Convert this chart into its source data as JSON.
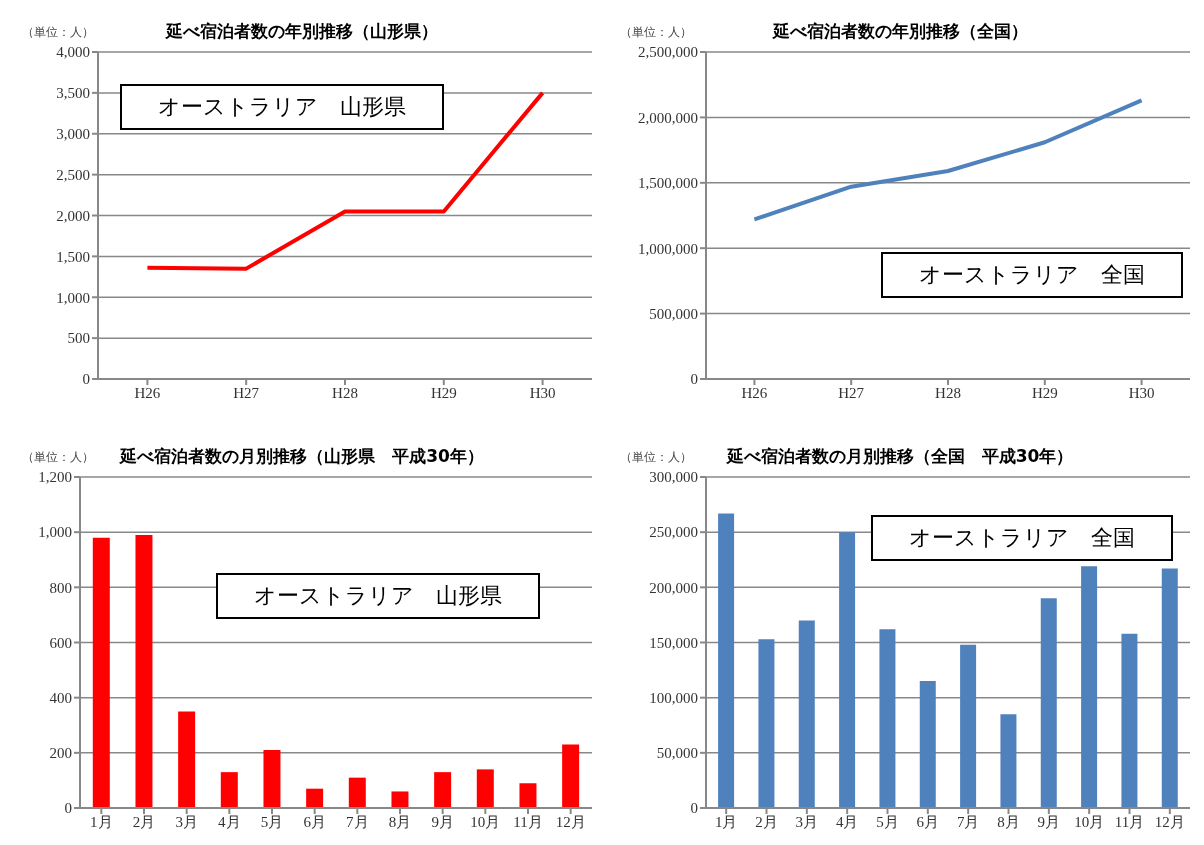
{
  "chart_data": [
    {
      "type": "line",
      "title": "延べ宿泊者数の年別推移（山形県）",
      "ylabel": "（単位：人）",
      "annotations": [
        "オーストラリア　山形県"
      ],
      "categories": [
        "H26",
        "H27",
        "H28",
        "H29",
        "H30"
      ],
      "series": [
        {
          "color": "#ff0000",
          "values": [
            1360,
            1350,
            2050,
            2050,
            3500
          ]
        }
      ],
      "ylim": [
        0,
        4000
      ],
      "yticks": [
        0,
        500,
        {
          "value": 1000,
          "label": "1,000"
        },
        {
          "value": 1500,
          "label": "1,500"
        },
        {
          "value": 2000,
          "label": "2,000"
        },
        {
          "value": 2500,
          "label": "2,500"
        },
        {
          "value": 3000,
          "label": "3,000"
        },
        {
          "value": 3500,
          "label": "3,500"
        },
        {
          "value": 4000,
          "label": "4,000"
        }
      ],
      "grid": "y",
      "legend": false,
      "marker": "none"
    },
    {
      "type": "line",
      "title": "延べ宿泊者数の年別推移（全国）",
      "ylabel": "（単位：人）",
      "annotations": [
        "オーストラリア　全国"
      ],
      "categories": [
        "H26",
        "H27",
        "H28",
        "H29",
        "H30"
      ],
      "series": [
        {
          "color": "#4f81bd",
          "values": [
            1220000,
            1470000,
            1590000,
            1810000,
            2130000
          ]
        }
      ],
      "ylim": [
        0,
        2500000
      ],
      "yticks": [
        0,
        {
          "value": 500000,
          "label": "500,000"
        },
        {
          "value": 1000000,
          "label": "1,000,000"
        },
        {
          "value": 1500000,
          "label": "1,500,000"
        },
        {
          "value": 2000000,
          "label": "2,000,000"
        },
        {
          "value": 2500000,
          "label": "2,500,000"
        }
      ],
      "grid": "y",
      "legend": false,
      "marker": "none"
    },
    {
      "type": "bar",
      "title": "延べ宿泊者数の月別推移（山形県　平成30年）",
      "ylabel": "（単位：人）",
      "annotations": [
        "オーストラリア　山形県"
      ],
      "categories": [
        "1月",
        "2月",
        "3月",
        "4月",
        "5月",
        "6月",
        "7月",
        "8月",
        "9月",
        "10月",
        "11月",
        "12月"
      ],
      "series": [
        {
          "color": "#ff0000",
          "values": [
            980,
            990,
            350,
            130,
            210,
            70,
            110,
            60,
            130,
            140,
            90,
            230
          ]
        }
      ],
      "ylim": [
        0,
        1200
      ],
      "yticks": [
        0,
        200,
        400,
        600,
        800,
        {
          "value": 1000,
          "label": "1,000"
        },
        {
          "value": 1200,
          "label": "1,200"
        }
      ],
      "grid": "y",
      "legend": false
    },
    {
      "type": "bar",
      "title": "延べ宿泊者数の月別推移（全国　平成30年）",
      "ylabel": "（単位：人）",
      "annotations": [
        "オーストラリア　全国"
      ],
      "categories": [
        "1月",
        "2月",
        "3月",
        "4月",
        "5月",
        "6月",
        "7月",
        "8月",
        "9月",
        "10月",
        "11月",
        "12月"
      ],
      "series": [
        {
          "color": "#4f81bd",
          "values": [
            267000,
            153000,
            170000,
            250000,
            162000,
            115000,
            148000,
            85000,
            190000,
            219000,
            158000,
            217000
          ]
        }
      ],
      "ylim": [
        0,
        300000
      ],
      "yticks": [
        0,
        {
          "value": 50000,
          "label": "50,000"
        },
        {
          "value": 100000,
          "label": "100,000"
        },
        {
          "value": 150000,
          "label": "150,000"
        },
        {
          "value": 200000,
          "label": "200,000"
        },
        {
          "value": 250000,
          "label": "250,000"
        },
        {
          "value": 300000,
          "label": "300,000"
        }
      ],
      "grid": "y",
      "legend": false
    }
  ]
}
